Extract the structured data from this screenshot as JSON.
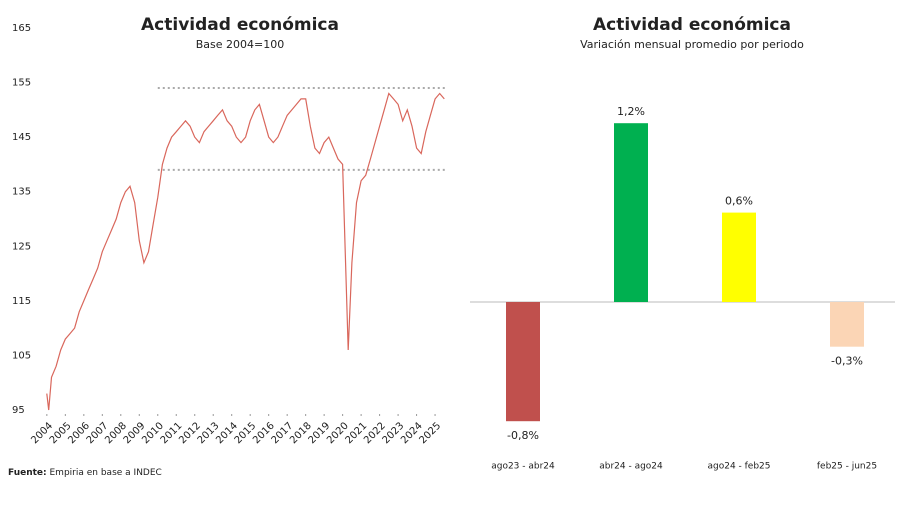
{
  "chart_data": [
    {
      "type": "line",
      "title": "Actividad económica",
      "subtitle": "Base 2004=100",
      "color": "#d9675c",
      "x": [
        2004.0,
        2004.1,
        2004.25,
        2004.5,
        2004.75,
        2005.0,
        2005.25,
        2005.5,
        2005.75,
        2006.0,
        2006.25,
        2006.5,
        2006.75,
        2007.0,
        2007.25,
        2007.5,
        2007.75,
        2008.0,
        2008.25,
        2008.5,
        2008.75,
        2009.0,
        2009.25,
        2009.5,
        2009.75,
        2010.0,
        2010.25,
        2010.5,
        2010.75,
        2011.0,
        2011.25,
        2011.5,
        2011.75,
        2012.0,
        2012.25,
        2012.5,
        2012.75,
        2013.0,
        2013.25,
        2013.5,
        2013.75,
        2014.0,
        2014.25,
        2014.5,
        2014.75,
        2015.0,
        2015.25,
        2015.5,
        2015.75,
        2016.0,
        2016.25,
        2016.5,
        2016.75,
        2017.0,
        2017.25,
        2017.5,
        2017.75,
        2018.0,
        2018.25,
        2018.5,
        2018.75,
        2019.0,
        2019.25,
        2019.5,
        2019.75,
        2020.0,
        2020.3,
        2020.5,
        2020.75,
        2021.0,
        2021.25,
        2021.5,
        2021.75,
        2022.0,
        2022.25,
        2022.5,
        2022.75,
        2023.0,
        2023.25,
        2023.5,
        2023.75,
        2024.0,
        2024.25,
        2024.5,
        2024.75,
        2025.0,
        2025.25,
        2025.5
      ],
      "values": [
        98,
        95,
        101,
        103,
        106,
        108,
        109,
        110,
        113,
        115,
        117,
        119,
        121,
        124,
        126,
        128,
        130,
        133,
        135,
        136,
        133,
        126,
        122,
        124,
        129,
        134,
        140,
        143,
        145,
        146,
        147,
        148,
        147,
        145,
        144,
        146,
        147,
        148,
        149,
        150,
        148,
        147,
        145,
        144,
        145,
        148,
        150,
        151,
        148,
        145,
        144,
        145,
        147,
        149,
        150,
        151,
        152,
        152,
        147,
        143,
        142,
        144,
        145,
        143,
        141,
        140,
        106,
        122,
        133,
        137,
        138,
        141,
        144,
        147,
        150,
        153,
        152,
        151,
        148,
        150,
        147,
        143,
        142,
        146,
        149,
        152,
        153,
        152
      ],
      "xlim": [
        2003.9,
        2025.7
      ],
      "xticks": [
        2004,
        2005,
        2006,
        2007,
        2008,
        2009,
        2010,
        2011,
        2012,
        2013,
        2014,
        2015,
        2016,
        2017,
        2018,
        2019,
        2020,
        2021,
        2022,
        2023,
        2024,
        2025
      ],
      "ylim": [
        95,
        165
      ],
      "yticks": [
        95,
        105,
        115,
        125,
        135,
        145,
        155,
        165
      ],
      "reference_lines": [
        {
          "value": 154,
          "x": [
            2010,
            2025.6
          ]
        },
        {
          "value": 139,
          "x": [
            2010,
            2025.6
          ]
        }
      ],
      "source_label": "Fuente:",
      "source": "Empiria en base a INDEC"
    },
    {
      "type": "bar",
      "title": "Actividad económica",
      "subtitle": "Variación mensual promedio por periodo",
      "categories": [
        "ago23 - abr24",
        "abr24 - ago24",
        "ago24 - feb25",
        "feb25 - jun25"
      ],
      "values": [
        -0.8,
        1.2,
        0.6,
        -0.3
      ],
      "value_labels": [
        "-0,8%",
        "1,2%",
        "0,6%",
        "-0,3%"
      ],
      "colors": [
        "#c0504d",
        "#00b050",
        "#ffff00",
        "#fbd5b5"
      ],
      "ylim": [
        -1,
        1.5
      ]
    }
  ]
}
